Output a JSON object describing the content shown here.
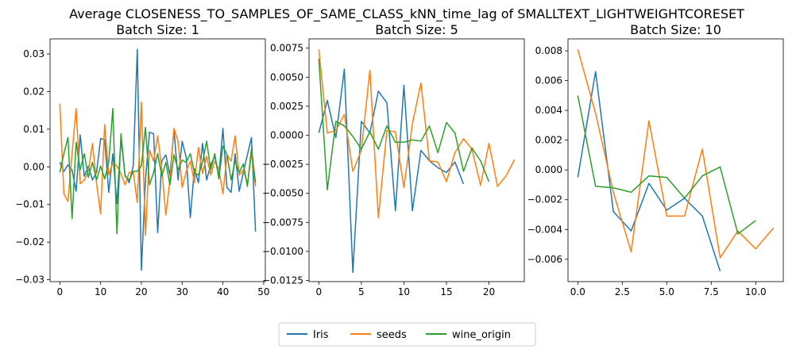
{
  "figure": {
    "title": "Average CLOSENESS_TO_SAMPLES_OF_SAME_CLASS_kNN_time_lag of SMALLTEXT_LIGHTWEIGHTCORESET"
  },
  "legend": {
    "placement": "bottom-center",
    "entries": [
      {
        "name": "Iris",
        "color": "#1f77b4"
      },
      {
        "name": "seeds",
        "color": "#ff7f0e"
      },
      {
        "name": "wine_origin",
        "color": "#2ca02c"
      }
    ]
  },
  "chart_data": [
    {
      "type": "line",
      "title": "Batch Size: 1",
      "xlabel": "",
      "ylabel": "",
      "xlim": [
        -2.4,
        50.4
      ],
      "ylim": [
        -0.0305,
        0.034
      ],
      "xticks": [
        0,
        10,
        20,
        30,
        40,
        50
      ],
      "xtick_labels": [
        "0",
        "10",
        "20",
        "30",
        "40",
        "50"
      ],
      "yticks": [
        -0.03,
        -0.02,
        -0.01,
        0.0,
        0.01,
        0.02,
        0.03
      ],
      "ytick_labels": [
        "−0.03",
        "−0.02",
        "−0.01",
        "0.00",
        "0.01",
        "0.02",
        "0.03"
      ],
      "grid": false,
      "series": [
        {
          "name": "Iris",
          "color": "#1f77b4",
          "x": [
            0,
            1,
            2,
            3,
            4,
            5,
            6,
            7,
            8,
            9,
            10,
            11,
            12,
            13,
            14,
            15,
            16,
            17,
            18,
            19,
            20,
            21,
            22,
            23,
            24,
            25,
            26,
            27,
            28,
            29,
            30,
            31,
            32,
            33,
            34,
            35,
            36,
            37,
            38,
            39,
            40,
            41,
            42,
            43,
            44,
            45,
            46,
            47,
            48
          ],
          "y": [
            0.0012,
            -0.0012,
            0.0005,
            -0.0008,
            -0.0065,
            0.0085,
            -0.0025,
            0.0002,
            -0.0035,
            -0.0015,
            0.0075,
            0.0072,
            -0.0068,
            0.0035,
            -0.0098,
            0.0075,
            -0.0022,
            -0.0042,
            0.0002,
            0.0312,
            -0.0275,
            -0.0035,
            0.0092,
            0.0088,
            -0.0175,
            0.0015,
            0.0032,
            -0.0022,
            0.0098,
            -0.0035,
            0.0068,
            0.0025,
            -0.0135,
            -0.0005,
            -0.0042,
            0.0062,
            -0.0035,
            0.0005,
            0.0028,
            -0.0025,
            0.0102,
            -0.0055,
            -0.0068,
            0.0035,
            -0.0065,
            -0.0015,
            0.0032,
            0.0078,
            -0.0172
          ]
        },
        {
          "name": "seeds",
          "color": "#ff7f0e",
          "x": [
            0,
            1,
            2,
            3,
            4,
            5,
            6,
            7,
            8,
            9,
            10,
            11,
            12,
            13,
            14,
            15,
            16,
            17,
            18,
            19,
            20,
            21,
            22,
            23,
            24,
            25,
            26,
            27,
            28,
            29,
            30,
            31,
            32,
            33,
            34,
            35,
            36,
            37,
            38,
            39,
            40,
            41,
            42,
            43,
            44,
            45,
            46,
            47,
            48
          ],
          "y": [
            0.0168,
            -0.0072,
            -0.0092,
            0.0035,
            0.0155,
            -0.0045,
            -0.0035,
            -0.0012,
            0.0062,
            -0.0042,
            -0.0125,
            0.0112,
            -0.0022,
            0.0012,
            0.0002,
            -0.0018,
            -0.0048,
            -0.0015,
            -0.0012,
            -0.0095,
            0.0172,
            -0.0182,
            0.0045,
            0.0015,
            0.0082,
            -0.0005,
            -0.0128,
            -0.0035,
            0.0102,
            0.0068,
            -0.0055,
            -0.0012,
            0.0015,
            -0.0042,
            0.0052,
            -0.0018,
            0.0028,
            -0.0022,
            0.0015,
            -0.0005,
            -0.0072,
            0.0032,
            0.0015,
            0.0082,
            -0.0022,
            -0.0008,
            -0.0045,
            0.0035,
            -0.0052
          ]
        },
        {
          "name": "wine_origin",
          "color": "#2ca02c",
          "x": [
            0,
            1,
            2,
            3,
            4,
            5,
            6,
            7,
            8,
            9,
            10,
            11,
            12,
            13,
            14,
            15,
            16,
            17,
            18,
            19,
            20,
            21,
            22,
            23,
            24,
            25,
            26,
            27,
            28,
            29,
            30,
            31,
            32,
            33,
            34,
            35,
            36,
            37,
            38,
            39,
            40,
            41,
            42,
            43,
            44,
            45,
            46,
            47,
            48
          ],
          "y": [
            -0.0015,
            0.0035,
            0.0078,
            -0.0138,
            0.0065,
            -0.0008,
            0.0035,
            -0.0028,
            0.0012,
            -0.0035,
            0.0002,
            -0.0032,
            0.0012,
            0.0155,
            -0.0178,
            0.0088,
            -0.0025,
            -0.0035,
            -0.0012,
            -0.0012,
            0.0002,
            0.0105,
            -0.0048,
            -0.0015,
            0.0035,
            -0.0025,
            0.0012,
            -0.0048,
            0.0032,
            -0.0008,
            0.0018,
            0.0012,
            0.0035,
            -0.0015,
            -0.0022,
            0.0012,
            0.0068,
            -0.0008,
            0.0035,
            -0.0032,
            0.0055,
            0.0032,
            -0.0035,
            0.0015,
            -0.0015,
            0.0008,
            -0.0052,
            0.0048,
            -0.0042
          ]
        }
      ]
    },
    {
      "type": "line",
      "title": "Batch Size: 5",
      "xlabel": "",
      "ylabel": "",
      "xlim": [
        -1.15,
        24.15
      ],
      "ylim": [
        -0.0126,
        0.0083
      ],
      "xticks": [
        0,
        5,
        10,
        15,
        20
      ],
      "xtick_labels": [
        "0",
        "5",
        "10",
        "15",
        "20"
      ],
      "yticks": [
        -0.0125,
        -0.01,
        -0.0075,
        -0.005,
        -0.0025,
        0.0,
        0.0025,
        0.005,
        0.0075
      ],
      "ytick_labels": [
        "−0.0125",
        "−0.0100",
        "−0.0075",
        "−0.0050",
        "−0.0025",
        "0.0000",
        "0.0025",
        "0.0050",
        "0.0075"
      ],
      "grid": false,
      "series": [
        {
          "name": "Iris",
          "color": "#1f77b4",
          "x": [
            0,
            1,
            2,
            3,
            4,
            5,
            6,
            7,
            8,
            9,
            10,
            11,
            12,
            13,
            14,
            15,
            16,
            17
          ],
          "y": [
            0.0002,
            0.003,
            -0.0002,
            0.0057,
            -0.0118,
            0.0012,
            0.0002,
            0.0038,
            0.0028,
            -0.0065,
            0.0043,
            -0.0065,
            -0.0013,
            -0.0022,
            -0.0028,
            -0.0032,
            -0.0023,
            -0.0042
          ]
        },
        {
          "name": "seeds",
          "color": "#ff7f0e",
          "x": [
            0,
            1,
            2,
            3,
            4,
            5,
            6,
            7,
            8,
            9,
            10,
            11,
            12,
            13,
            14,
            15,
            16,
            17,
            18,
            19,
            20,
            21,
            22,
            23
          ],
          "y": [
            0.0074,
            0.0002,
            0.0004,
            0.0018,
            -0.0031,
            -0.0013,
            0.0056,
            -0.0071,
            0.0004,
            0.0003,
            -0.0045,
            0.001,
            0.0045,
            -0.0022,
            -0.0023,
            -0.004,
            -0.0015,
            -0.0003,
            -0.0012,
            -0.0043,
            -0.0007,
            -0.0044,
            -0.0035,
            -0.0021
          ]
        },
        {
          "name": "wine_origin",
          "color": "#2ca02c",
          "x": [
            0,
            1,
            2,
            3,
            4,
            5,
            6,
            7,
            8,
            9,
            10,
            11,
            12,
            13,
            14,
            15,
            16,
            17,
            18,
            19,
            20
          ],
          "y": [
            0.0066,
            -0.0047,
            0.0012,
            0.0008,
            -0.0001,
            -0.0012,
            0.0003,
            -0.0012,
            0.0008,
            -0.0006,
            -0.0006,
            -0.0004,
            -0.0005,
            0.0008,
            -0.0015,
            0.0011,
            0.0002,
            -0.0031,
            -0.0011,
            -0.0022,
            -0.004
          ]
        }
      ]
    },
    {
      "type": "line",
      "title": "Batch Size: 10",
      "xlabel": "",
      "ylabel": "",
      "xlim": [
        -0.55,
        11.55
      ],
      "ylim": [
        -0.0075,
        0.0088
      ],
      "xticks": [
        0,
        2.5,
        5,
        7.5,
        10
      ],
      "xtick_labels": [
        "0.0",
        "2.5",
        "5.0",
        "7.5",
        "10.0"
      ],
      "yticks": [
        -0.006,
        -0.004,
        -0.002,
        0.0,
        0.002,
        0.004,
        0.006,
        0.008
      ],
      "ytick_labels": [
        "−0.006",
        "−0.004",
        "−0.002",
        "0.000",
        "0.002",
        "0.004",
        "0.006",
        "0.008"
      ],
      "grid": false,
      "series": [
        {
          "name": "Iris",
          "color": "#1f77b4",
          "x": [
            0,
            1,
            2,
            3,
            4,
            5,
            6,
            7,
            8
          ],
          "y": [
            -0.0005,
            0.0066,
            -0.0028,
            -0.0041,
            -0.0009,
            -0.0027,
            -0.0019,
            -0.0031,
            -0.0068
          ]
        },
        {
          "name": "seeds",
          "color": "#ff7f0e",
          "x": [
            0,
            1,
            2,
            3,
            4,
            5,
            6,
            7,
            8,
            9,
            10,
            11
          ],
          "y": [
            0.0081,
            0.0038,
            -0.0015,
            -0.0055,
            0.0033,
            -0.0031,
            -0.0031,
            0.0014,
            -0.0059,
            -0.0041,
            -0.0053,
            -0.0039
          ]
        },
        {
          "name": "wine_origin",
          "color": "#2ca02c",
          "x": [
            0,
            1,
            2,
            3,
            4,
            5,
            6,
            7,
            8,
            9,
            10
          ],
          "y": [
            0.005,
            -0.0011,
            -0.0012,
            -0.0015,
            -0.0004,
            -0.0005,
            -0.0019,
            -0.0004,
            0.0002,
            -0.0043,
            -0.0034
          ]
        }
      ]
    }
  ]
}
